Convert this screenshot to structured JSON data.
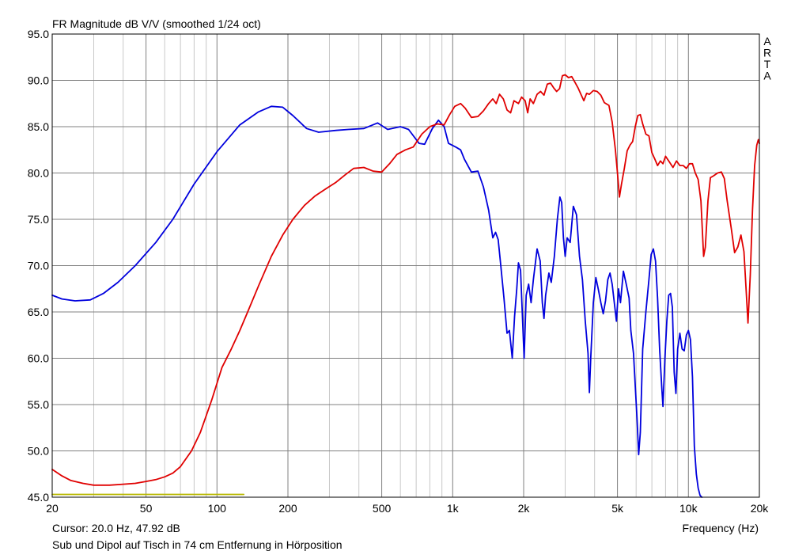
{
  "chart_data": {
    "type": "line",
    "title": "FR Magnitude dB V/V (smoothed 1/24 oct)",
    "xlabel": "Frequency (Hz)",
    "ylabel": "",
    "x_scale": "log",
    "xlim": [
      20,
      20000
    ],
    "ylim": [
      45,
      95
    ],
    "grid": true,
    "watermark": "ARTA",
    "cursor_text": "Cursor: 20.0 Hz, 47.92 dB",
    "caption": "Sub und Dipol auf Tisch in 74 cm Entfernung in Hörposition",
    "y_ticks": [
      "45.0",
      "50.0",
      "55.0",
      "60.0",
      "65.0",
      "70.0",
      "75.0",
      "80.0",
      "85.0",
      "90.0",
      "95.0"
    ],
    "x_ticks": [
      {
        "f": 20,
        "label": "20"
      },
      {
        "f": 50,
        "label": "50"
      },
      {
        "f": 100,
        "label": "100"
      },
      {
        "f": 200,
        "label": "200"
      },
      {
        "f": 500,
        "label": "500"
      },
      {
        "f": 1000,
        "label": "1k"
      },
      {
        "f": 2000,
        "label": "2k"
      },
      {
        "f": 5000,
        "label": "5k"
      },
      {
        "f": 10000,
        "label": "10k"
      },
      {
        "f": 20000,
        "label": "20k"
      }
    ],
    "series": [
      {
        "color": "#0000dd",
        "points": [
          [
            20,
            66.8
          ],
          [
            22,
            66.4
          ],
          [
            25,
            66.2
          ],
          [
            29,
            66.3
          ],
          [
            33,
            67.0
          ],
          [
            38,
            68.2
          ],
          [
            45,
            70.0
          ],
          [
            55,
            72.5
          ],
          [
            65,
            75.0
          ],
          [
            80,
            78.8
          ],
          [
            100,
            82.3
          ],
          [
            125,
            85.2
          ],
          [
            150,
            86.6
          ],
          [
            170,
            87.2
          ],
          [
            190,
            87.1
          ],
          [
            210,
            86.2
          ],
          [
            240,
            84.8
          ],
          [
            270,
            84.4
          ],
          [
            320,
            84.6
          ],
          [
            360,
            84.7
          ],
          [
            420,
            84.8
          ],
          [
            480,
            85.4
          ],
          [
            530,
            84.7
          ],
          [
            600,
            85.0
          ],
          [
            650,
            84.7
          ],
          [
            720,
            83.2
          ],
          [
            760,
            83.1
          ],
          [
            820,
            84.8
          ],
          [
            870,
            85.7
          ],
          [
            920,
            85.0
          ],
          [
            960,
            83.2
          ],
          [
            1030,
            82.8
          ],
          [
            1080,
            82.5
          ],
          [
            1120,
            81.5
          ],
          [
            1200,
            80.1
          ],
          [
            1280,
            80.2
          ],
          [
            1350,
            78.5
          ],
          [
            1420,
            76.0
          ],
          [
            1480,
            73.0
          ],
          [
            1520,
            73.6
          ],
          [
            1560,
            72.8
          ],
          [
            1600,
            70.0
          ],
          [
            1650,
            66.5
          ],
          [
            1700,
            62.7
          ],
          [
            1740,
            63.0
          ],
          [
            1790,
            60.0
          ],
          [
            1830,
            64.5
          ],
          [
            1870,
            67.5
          ],
          [
            1900,
            70.3
          ],
          [
            1940,
            69.5
          ],
          [
            1980,
            64.0
          ],
          [
            2010,
            60.0
          ],
          [
            2050,
            66.8
          ],
          [
            2100,
            68.0
          ],
          [
            2150,
            66.0
          ],
          [
            2200,
            68.5
          ],
          [
            2280,
            71.8
          ],
          [
            2350,
            70.5
          ],
          [
            2400,
            66.0
          ],
          [
            2440,
            64.3
          ],
          [
            2480,
            66.8
          ],
          [
            2560,
            69.2
          ],
          [
            2620,
            68.2
          ],
          [
            2700,
            71.0
          ],
          [
            2780,
            75.0
          ],
          [
            2850,
            77.4
          ],
          [
            2900,
            76.8
          ],
          [
            2950,
            73.0
          ],
          [
            3000,
            71.0
          ],
          [
            3060,
            73.0
          ],
          [
            3150,
            72.5
          ],
          [
            3250,
            76.4
          ],
          [
            3350,
            75.5
          ],
          [
            3450,
            71.0
          ],
          [
            3550,
            68.5
          ],
          [
            3650,
            64.0
          ],
          [
            3750,
            60.5
          ],
          [
            3800,
            56.3
          ],
          [
            3850,
            60.0
          ],
          [
            3950,
            66.0
          ],
          [
            4050,
            68.7
          ],
          [
            4150,
            67.4
          ],
          [
            4250,
            66.0
          ],
          [
            4350,
            64.8
          ],
          [
            4450,
            66.2
          ],
          [
            4550,
            68.5
          ],
          [
            4650,
            69.2
          ],
          [
            4750,
            68.0
          ],
          [
            4850,
            66.0
          ],
          [
            4950,
            64.0
          ],
          [
            5050,
            67.5
          ],
          [
            5150,
            66.0
          ],
          [
            5300,
            69.4
          ],
          [
            5450,
            68.0
          ],
          [
            5600,
            66.5
          ],
          [
            5700,
            63.0
          ],
          [
            5850,
            60.5
          ],
          [
            5950,
            57.0
          ],
          [
            6050,
            53.5
          ],
          [
            6150,
            49.6
          ],
          [
            6250,
            52.0
          ],
          [
            6400,
            61.0
          ],
          [
            6600,
            65.0
          ],
          [
            6800,
            68.5
          ],
          [
            6950,
            71.2
          ],
          [
            7100,
            71.8
          ],
          [
            7250,
            70.5
          ],
          [
            7400,
            66.5
          ],
          [
            7550,
            61.0
          ],
          [
            7700,
            57.0
          ],
          [
            7800,
            54.8
          ],
          [
            7950,
            60.0
          ],
          [
            8100,
            64.0
          ],
          [
            8250,
            66.8
          ],
          [
            8400,
            67.0
          ],
          [
            8550,
            65.5
          ],
          [
            8700,
            58.5
          ],
          [
            8850,
            56.2
          ],
          [
            9000,
            61.0
          ],
          [
            9200,
            62.7
          ],
          [
            9400,
            61.0
          ],
          [
            9600,
            60.8
          ],
          [
            9800,
            62.5
          ],
          [
            10000,
            63.0
          ],
          [
            10200,
            62.0
          ],
          [
            10400,
            58.0
          ],
          [
            10600,
            50.5
          ],
          [
            10800,
            47.5
          ],
          [
            11000,
            46.0
          ],
          [
            11200,
            45.2
          ],
          [
            11400,
            45.0
          ]
        ]
      },
      {
        "color": "#e00000",
        "points": [
          [
            20,
            48.0
          ],
          [
            22,
            47.3
          ],
          [
            24,
            46.8
          ],
          [
            27,
            46.5
          ],
          [
            30,
            46.3
          ],
          [
            35,
            46.3
          ],
          [
            40,
            46.4
          ],
          [
            45,
            46.5
          ],
          [
            50,
            46.7
          ],
          [
            55,
            46.9
          ],
          [
            60,
            47.2
          ],
          [
            65,
            47.6
          ],
          [
            70,
            48.3
          ],
          [
            78,
            50.0
          ],
          [
            85,
            52.0
          ],
          [
            95,
            55.5
          ],
          [
            105,
            59.0
          ],
          [
            115,
            61.0
          ],
          [
            125,
            63.0
          ],
          [
            135,
            65.0
          ],
          [
            150,
            67.8
          ],
          [
            170,
            71.0
          ],
          [
            190,
            73.3
          ],
          [
            210,
            75.0
          ],
          [
            235,
            76.5
          ],
          [
            260,
            77.5
          ],
          [
            290,
            78.3
          ],
          [
            320,
            79.0
          ],
          [
            350,
            79.8
          ],
          [
            380,
            80.5
          ],
          [
            420,
            80.6
          ],
          [
            460,
            80.2
          ],
          [
            500,
            80.1
          ],
          [
            540,
            81.0
          ],
          [
            580,
            82.0
          ],
          [
            630,
            82.5
          ],
          [
            680,
            82.8
          ],
          [
            740,
            84.2
          ],
          [
            800,
            85.0
          ],
          [
            860,
            85.3
          ],
          [
            920,
            85.2
          ],
          [
            970,
            86.3
          ],
          [
            1020,
            87.2
          ],
          [
            1080,
            87.5
          ],
          [
            1130,
            87.0
          ],
          [
            1200,
            86.0
          ],
          [
            1280,
            86.1
          ],
          [
            1350,
            86.7
          ],
          [
            1420,
            87.5
          ],
          [
            1480,
            88.0
          ],
          [
            1530,
            87.5
          ],
          [
            1580,
            88.5
          ],
          [
            1640,
            88.0
          ],
          [
            1700,
            86.8
          ],
          [
            1760,
            86.5
          ],
          [
            1820,
            87.8
          ],
          [
            1900,
            87.5
          ],
          [
            1960,
            88.2
          ],
          [
            2030,
            87.8
          ],
          [
            2080,
            86.5
          ],
          [
            2130,
            88.0
          ],
          [
            2200,
            87.5
          ],
          [
            2280,
            88.5
          ],
          [
            2360,
            88.8
          ],
          [
            2440,
            88.4
          ],
          [
            2520,
            89.6
          ],
          [
            2600,
            89.7
          ],
          [
            2680,
            89.2
          ],
          [
            2760,
            88.8
          ],
          [
            2840,
            89.1
          ],
          [
            2920,
            90.5
          ],
          [
            3000,
            90.6
          ],
          [
            3100,
            90.3
          ],
          [
            3200,
            90.4
          ],
          [
            3300,
            89.8
          ],
          [
            3400,
            89.2
          ],
          [
            3500,
            88.5
          ],
          [
            3600,
            87.8
          ],
          [
            3700,
            88.6
          ],
          [
            3800,
            88.5
          ],
          [
            3950,
            88.9
          ],
          [
            4100,
            88.8
          ],
          [
            4250,
            88.4
          ],
          [
            4400,
            87.6
          ],
          [
            4600,
            87.3
          ],
          [
            4750,
            85.5
          ],
          [
            4900,
            82.5
          ],
          [
            5000,
            80.0
          ],
          [
            5100,
            77.4
          ],
          [
            5200,
            78.8
          ],
          [
            5350,
            80.5
          ],
          [
            5500,
            82.4
          ],
          [
            5650,
            83.0
          ],
          [
            5800,
            83.4
          ],
          [
            5950,
            85.0
          ],
          [
            6100,
            86.2
          ],
          [
            6250,
            86.3
          ],
          [
            6400,
            85.3
          ],
          [
            6600,
            84.2
          ],
          [
            6800,
            84.0
          ],
          [
            7000,
            82.2
          ],
          [
            7200,
            81.5
          ],
          [
            7400,
            80.8
          ],
          [
            7600,
            81.3
          ],
          [
            7800,
            81.0
          ],
          [
            8000,
            81.8
          ],
          [
            8300,
            81.2
          ],
          [
            8600,
            80.6
          ],
          [
            8900,
            81.3
          ],
          [
            9200,
            80.8
          ],
          [
            9500,
            80.8
          ],
          [
            9800,
            80.5
          ],
          [
            10100,
            81.0
          ],
          [
            10400,
            81.0
          ],
          [
            10700,
            80.0
          ],
          [
            11000,
            79.3
          ],
          [
            11300,
            77.0
          ],
          [
            11600,
            71.0
          ],
          [
            11800,
            72.0
          ],
          [
            12100,
            77.0
          ],
          [
            12400,
            79.5
          ],
          [
            12800,
            79.7
          ],
          [
            13300,
            80.0
          ],
          [
            13800,
            80.1
          ],
          [
            14200,
            79.4
          ],
          [
            14600,
            77.0
          ],
          [
            15200,
            74.0
          ],
          [
            15700,
            71.4
          ],
          [
            16200,
            72.0
          ],
          [
            16700,
            73.3
          ],
          [
            17200,
            71.5
          ],
          [
            17600,
            67.0
          ],
          [
            17900,
            63.8
          ],
          [
            18300,
            69.0
          ],
          [
            18700,
            76.0
          ],
          [
            19100,
            80.8
          ],
          [
            19500,
            83.0
          ],
          [
            19800,
            83.6
          ],
          [
            20000,
            83.2
          ]
        ]
      },
      {
        "color": "#b8b800",
        "points": [
          [
            20,
            45.3
          ],
          [
            130,
            45.3
          ]
        ]
      }
    ]
  }
}
